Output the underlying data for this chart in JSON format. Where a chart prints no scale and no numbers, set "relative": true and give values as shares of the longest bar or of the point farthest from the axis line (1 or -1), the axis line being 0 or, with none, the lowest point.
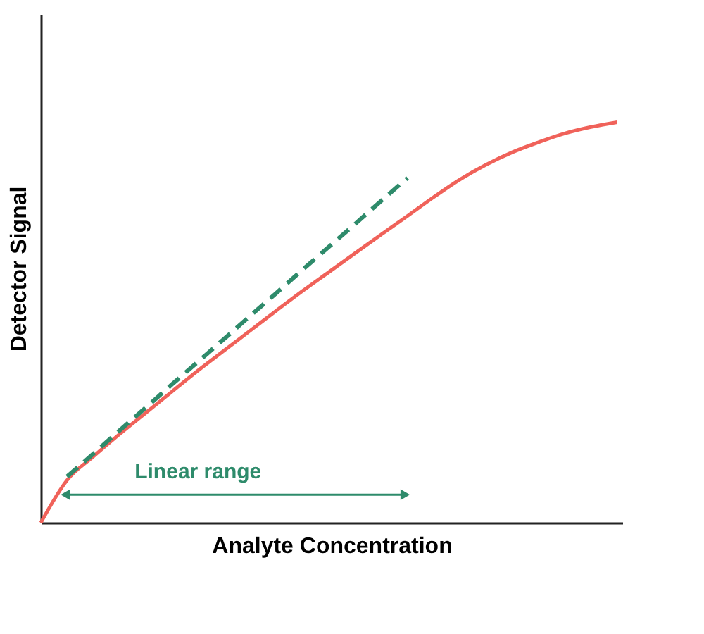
{
  "chart_data": {
    "type": "line",
    "relative": true,
    "xlabel": "Analyte Concentration",
    "ylabel": "Detector Signal",
    "categories": [
      null,
      null,
      null,
      null,
      null,
      null,
      null,
      null,
      null,
      null,
      null,
      null,
      null,
      null,
      null,
      null,
      null,
      null,
      null,
      null,
      null,
      null,
      null
    ],
    "series": [
      {
        "color": "#f0625a",
        "line_style": "solid",
        "values": [
          0,
          0.106,
          0.165,
          0.221,
          0.274,
          0.327,
          0.38,
          0.43,
          0.48,
          0.53,
          0.579,
          0.626,
          0.673,
          0.72,
          0.766,
          0.813,
          0.857,
          0.894,
          0.925,
          0.95,
          0.972,
          0.988,
          1
        ]
      },
      {
        "color": "#2e8b6b",
        "line_style": "dashed",
        "values": [
          null,
          0.115,
          0.172,
          0.23,
          0.287,
          0.345,
          0.402,
          0.459,
          0.517,
          0.574,
          0.632,
          0.689,
          0.746,
          0.804,
          0.861,
          null,
          null,
          null,
          null,
          null,
          null,
          null,
          null
        ]
      }
    ],
    "annotations": [
      "Linear range"
    ],
    "grid": false,
    "marker": "none"
  }
}
